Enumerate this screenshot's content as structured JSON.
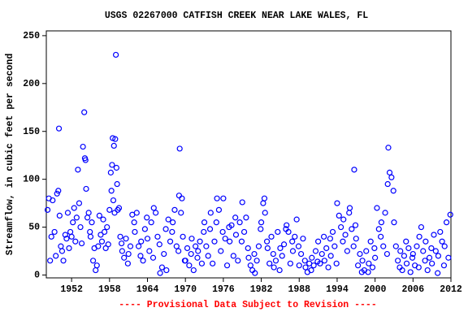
{
  "chart_data": {
    "type": "scatter",
    "title": "USGS 02267000 CATFISH CREEK NEAR LAKE WALES, FL",
    "ylabel": "Streamflow, in cubic feet per second",
    "note": "---- Provisional Data Subject to Revision ----",
    "color": "#0000ff",
    "note_color": "#ff0000",
    "grid": false,
    "xlim": [
      1948,
      2012
    ],
    "xticks": [
      1952,
      1958,
      1964,
      1970,
      1976,
      1982,
      1988,
      1994,
      2000,
      2006,
      2012
    ],
    "ylim": [
      -3,
      255
    ],
    "yticks": [
      0,
      50,
      100,
      150,
      200,
      250
    ],
    "x": [
      1948.2,
      1948.4,
      1948.6,
      1948.8,
      1949,
      1949.3,
      1949.5,
      1949.7,
      1949.9,
      1950,
      1950.1,
      1950.3,
      1950.5,
      1950.7,
      1951,
      1951.2,
      1951.4,
      1951.6,
      1951.8,
      1952,
      1952.2,
      1952.4,
      1952.6,
      1952.8,
      1953,
      1953.2,
      1953.4,
      1953.6,
      1953.8,
      1954,
      1954.1,
      1954.2,
      1954.3,
      1954.5,
      1954.7,
      1954.9,
      1955,
      1955.2,
      1955.4,
      1955.6,
      1955.8,
      1956,
      1956.2,
      1956.4,
      1956.6,
      1956.8,
      1957,
      1957.2,
      1957.4,
      1957.6,
      1957.8,
      1958,
      1958.2,
      1958.3,
      1958.4,
      1958.5,
      1958.6,
      1958.7,
      1958.8,
      1958.9,
      1959,
      1959.1,
      1959.2,
      1959.3,
      1959.5,
      1959.7,
      1959.9,
      1960,
      1960.3,
      1960.6,
      1960.9,
      1961,
      1961.3,
      1961.6,
      1961.9,
      1962,
      1962.3,
      1962.6,
      1962.9,
      1963,
      1963.3,
      1963.6,
      1963.9,
      1964,
      1964.3,
      1964.6,
      1964.9,
      1965,
      1965.3,
      1965.6,
      1965.9,
      1966,
      1966.3,
      1966.6,
      1966.9,
      1967,
      1967.3,
      1967.6,
      1967.9,
      1968,
      1968.3,
      1968.6,
      1968.9,
      1969,
      1969.3,
      1969.6,
      1969.9,
      1970,
      1970.3,
      1970.6,
      1970.9,
      1971,
      1971.3,
      1971.6,
      1971.9,
      1972,
      1972.3,
      1972.6,
      1972.9,
      1973,
      1973.3,
      1973.6,
      1973.9,
      1974,
      1974.3,
      1974.6,
      1974.9,
      1975,
      1975.3,
      1975.6,
      1975.9,
      1976,
      1976.3,
      1976.6,
      1976.9,
      1977,
      1977.3,
      1977.6,
      1977.9,
      1978,
      1978.3,
      1978.6,
      1978.9,
      1979,
      1979.3,
      1979.6,
      1979.9,
      1980,
      1980.3,
      1980.6,
      1980.9,
      1981,
      1981.3,
      1981.6,
      1981.9,
      1982,
      1982.3,
      1982.6,
      1982.9,
      1983,
      1983.3,
      1983.6,
      1983.9,
      1984,
      1984.3,
      1984.6,
      1984.9,
      1985,
      1985.3,
      1985.6,
      1985.9,
      1986,
      1986.3,
      1986.6,
      1986.9,
      1987,
      1987.3,
      1987.6,
      1987.9,
      1988,
      1988.3,
      1988.6,
      1988.9,
      1989,
      1989.3,
      1989.6,
      1989.9,
      1990,
      1990.3,
      1990.6,
      1990.9,
      1991,
      1991.3,
      1991.6,
      1991.9,
      1992,
      1992.3,
      1992.6,
      1992.9,
      1993,
      1993.3,
      1993.6,
      1993.9,
      1994,
      1994.3,
      1994.6,
      1994.9,
      1995,
      1995.3,
      1995.6,
      1995.9,
      1996,
      1996.3,
      1996.6,
      1996.9,
      1997,
      1997.3,
      1997.6,
      1997.9,
      1998,
      1998.3,
      1998.6,
      1998.9,
      1999,
      1999.3,
      1999.6,
      1999.9,
      2000,
      2000.3,
      2000.6,
      2000.9,
      2001,
      2001.3,
      2001.6,
      2001.9,
      2002,
      2002.3,
      2002.6,
      2002.9,
      2003,
      2003.3,
      2003.6,
      2003.9,
      2004,
      2004.3,
      2004.6,
      2004.9,
      2005,
      2005.3,
      2005.6,
      2005.9,
      2006,
      2006.3,
      2006.6,
      2006.9,
      2007,
      2007.3,
      2007.6,
      2007.9,
      2008,
      2008.3,
      2008.6,
      2008.9,
      2009,
      2009.3,
      2009.6,
      2009.9,
      2010,
      2010.3,
      2010.6,
      2010.9,
      2011,
      2011.3,
      2011.6,
      2011.9,
      1969.1,
      1969.45,
      1982.5,
      1996.7,
      2002.1
    ],
    "values": [
      68,
      80,
      15,
      40,
      78,
      45,
      20,
      85,
      88,
      153,
      62,
      30,
      25,
      15,
      42,
      38,
      65,
      28,
      45,
      40,
      55,
      70,
      35,
      60,
      110,
      75,
      50,
      33,
      134,
      170,
      122,
      120,
      90,
      60,
      65,
      45,
      40,
      55,
      15,
      28,
      5,
      10,
      30,
      62,
      42,
      35,
      58,
      45,
      28,
      50,
      32,
      68,
      107,
      88,
      115,
      143,
      78,
      135,
      65,
      142,
      230,
      112,
      95,
      68,
      70,
      40,
      33,
      25,
      18,
      38,
      12,
      22,
      30,
      63,
      55,
      45,
      65,
      30,
      20,
      35,
      15,
      48,
      60,
      38,
      25,
      55,
      18,
      70,
      65,
      40,
      32,
      2,
      8,
      22,
      48,
      5,
      58,
      35,
      45,
      55,
      68,
      30,
      25,
      83,
      65,
      40,
      15,
      15,
      28,
      10,
      22,
      38,
      5,
      30,
      18,
      25,
      35,
      12,
      45,
      55,
      30,
      20,
      48,
      65,
      12,
      35,
      55,
      80,
      68,
      25,
      45,
      80,
      38,
      10,
      50,
      35,
      52,
      20,
      60,
      42,
      15,
      55,
      35,
      76,
      45,
      60,
      28,
      18,
      10,
      5,
      22,
      2,
      15,
      30,
      48,
      55,
      75,
      65,
      35,
      28,
      12,
      40,
      22,
      8,
      15,
      45,
      5,
      28,
      20,
      32,
      48,
      52,
      45,
      12,
      35,
      25,
      40,
      58,
      30,
      10,
      22,
      38,
      15,
      8,
      3,
      12,
      5,
      18,
      10,
      25,
      14,
      35,
      12,
      22,
      40,
      15,
      28,
      8,
      38,
      20,
      45,
      30,
      12,
      75,
      62,
      50,
      35,
      58,
      42,
      25,
      65,
      70,
      48,
      30,
      52,
      38,
      10,
      22,
      3,
      15,
      5,
      25,
      3,
      12,
      35,
      8,
      28,
      18,
      70,
      48,
      40,
      55,
      30,
      65,
      22,
      95,
      107,
      102,
      88,
      55,
      30,
      15,
      8,
      25,
      5,
      20,
      35,
      12,
      28,
      3,
      18,
      22,
      10,
      30,
      8,
      40,
      50,
      25,
      15,
      35,
      5,
      18,
      28,
      12,
      42,
      25,
      2,
      20,
      45,
      35,
      10,
      30,
      55,
      18,
      63,
      132,
      80,
      80,
      110,
      133
    ]
  }
}
